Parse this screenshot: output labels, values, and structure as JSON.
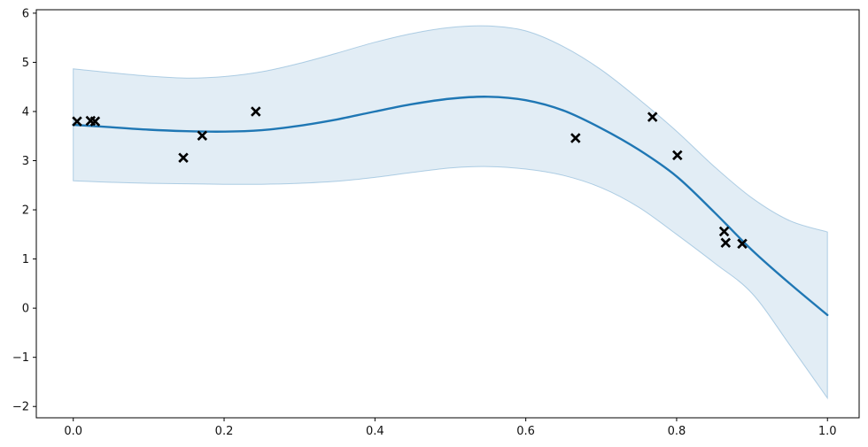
{
  "figure": {
    "background": "#ffffff",
    "spine_color": "#000000",
    "tick_color": "#000000",
    "tick_label_color": "#111111"
  },
  "chart_data": {
    "type": "line",
    "description": "Regression mean line with shaded confidence interval and scatter observations marked with x",
    "title": "",
    "xlabel": "",
    "ylabel": "",
    "grid": false,
    "legend": false,
    "xlim": [
      -0.049,
      1.042
    ],
    "ylim": [
      -2.23,
      6.07
    ],
    "x_ticks": [
      {
        "value": 0.0,
        "label": "0.0"
      },
      {
        "value": 0.2,
        "label": "0.2"
      },
      {
        "value": 0.4,
        "label": "0.4"
      },
      {
        "value": 0.6,
        "label": "0.6"
      },
      {
        "value": 0.8,
        "label": "0.8"
      },
      {
        "value": 1.0,
        "label": "1.0"
      }
    ],
    "y_ticks": [
      {
        "value": -2,
        "label": "−2"
      },
      {
        "value": -1,
        "label": "−1"
      },
      {
        "value": 0,
        "label": "0"
      },
      {
        "value": 1,
        "label": "1"
      },
      {
        "value": 2,
        "label": "2"
      },
      {
        "value": 3,
        "label": "3"
      },
      {
        "value": 4,
        "label": "4"
      },
      {
        "value": 5,
        "label": "5"
      },
      {
        "value": 6,
        "label": "6"
      }
    ],
    "series": [
      {
        "name": "confidence-band",
        "type": "band",
        "color": "#1f77b4",
        "fill_opacity": 0.13,
        "edge_opacity": 0.32,
        "edge_width": 1,
        "x": [
          0.0,
          0.05,
          0.1,
          0.15,
          0.2,
          0.25,
          0.3,
          0.35,
          0.4,
          0.45,
          0.5,
          0.55,
          0.6,
          0.65,
          0.7,
          0.75,
          0.8,
          0.85,
          0.9,
          0.95,
          1.0
        ],
        "upper": [
          4.87,
          4.79,
          4.72,
          4.68,
          4.71,
          4.81,
          4.98,
          5.19,
          5.41,
          5.59,
          5.71,
          5.74,
          5.64,
          5.32,
          4.85,
          4.25,
          3.6,
          2.88,
          2.24,
          1.78,
          1.55
        ],
        "lower": [
          2.59,
          2.56,
          2.54,
          2.53,
          2.52,
          2.52,
          2.54,
          2.58,
          2.66,
          2.76,
          2.85,
          2.88,
          2.83,
          2.7,
          2.45,
          2.05,
          1.5,
          0.92,
          0.3,
          -0.75,
          -1.83
        ]
      },
      {
        "name": "mean-prediction",
        "type": "line",
        "color": "#1f77b4",
        "width": 2.4,
        "x": [
          0.0,
          0.05,
          0.1,
          0.15,
          0.2,
          0.25,
          0.3,
          0.35,
          0.4,
          0.45,
          0.5,
          0.55,
          0.6,
          0.65,
          0.7,
          0.75,
          0.8,
          0.85,
          0.9,
          0.95,
          1.0
        ],
        "y": [
          3.73,
          3.68,
          3.63,
          3.6,
          3.59,
          3.62,
          3.71,
          3.84,
          4.0,
          4.15,
          4.26,
          4.3,
          4.23,
          4.02,
          3.66,
          3.22,
          2.68,
          1.95,
          1.18,
          0.5,
          -0.14
        ]
      },
      {
        "name": "observations",
        "type": "scatter",
        "marker": "x",
        "color": "#000000",
        "marker_half_size": 4.8,
        "marker_stroke_width": 2.7,
        "points": [
          [
            0.005,
            3.8
          ],
          [
            0.023,
            3.81
          ],
          [
            0.029,
            3.8
          ],
          [
            0.146,
            3.06
          ],
          [
            0.171,
            3.51
          ],
          [
            0.242,
            4.0
          ],
          [
            0.666,
            3.46
          ],
          [
            0.768,
            3.89
          ],
          [
            0.801,
            3.11
          ],
          [
            0.863,
            1.56
          ],
          [
            0.865,
            1.33
          ],
          [
            0.887,
            1.31
          ]
        ]
      }
    ]
  }
}
